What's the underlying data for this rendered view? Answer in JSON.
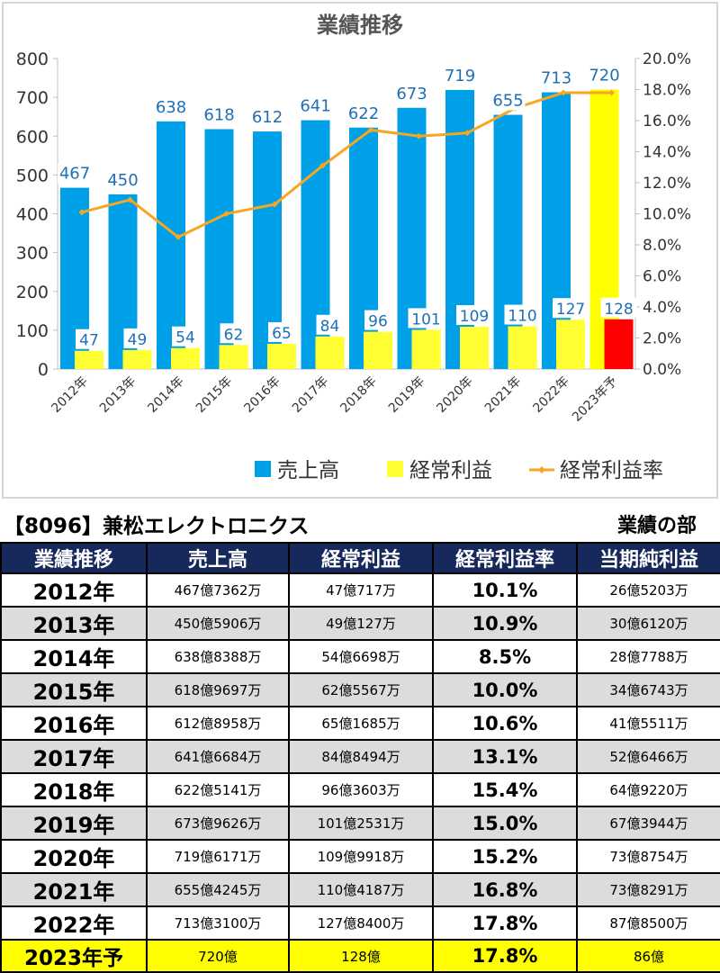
{
  "chart_data": {
    "type": "bar",
    "title": "業績推移",
    "categories": [
      "2012年",
      "2013年",
      "2014年",
      "2015年",
      "2016年",
      "2017年",
      "2018年",
      "2019年",
      "2020年",
      "2021年",
      "2022年",
      "2023年予"
    ],
    "series": [
      {
        "name": "売上高",
        "kind": "bar",
        "color": "#00a0e9",
        "values": [
          467,
          450,
          638,
          618,
          612,
          641,
          622,
          673,
          719,
          655,
          713,
          720
        ],
        "labels": [
          "467",
          "450",
          "638",
          "618",
          "612",
          "641",
          "622",
          "673",
          "719",
          "655",
          "713",
          "720"
        ]
      },
      {
        "name": "経常利益",
        "kind": "bar",
        "color": "#ffff33",
        "values": [
          47,
          49,
          54,
          62,
          65,
          84,
          96,
          101,
          109,
          110,
          127,
          128
        ],
        "labels": [
          "47",
          "49",
          "54",
          "62",
          "65",
          "84",
          "96",
          "101",
          "109",
          "110",
          "127",
          "128"
        ]
      },
      {
        "name": "経常利益率",
        "kind": "line",
        "axis": "right",
        "color": "#f5a623",
        "values": [
          10.1,
          10.9,
          8.5,
          10.0,
          10.6,
          13.1,
          15.4,
          15.0,
          15.2,
          16.8,
          17.8,
          17.8
        ]
      }
    ],
    "forecast_colors": {
      "売上高": "#ffff00",
      "経常利益": "#ff0000"
    },
    "ylim": [
      0,
      800
    ],
    "y_ticks": [
      "0",
      "100",
      "200",
      "300",
      "400",
      "500",
      "600",
      "700",
      "800"
    ],
    "y2lim": [
      0,
      20
    ],
    "y2_ticks": [
      "0.0%",
      "2.0%",
      "4.0%",
      "6.0%",
      "8.0%",
      "10.0%",
      "12.0%",
      "14.0%",
      "16.0%",
      "18.0%",
      "20.0%"
    ],
    "grid": false,
    "legend": "bottom-right"
  },
  "company_title": "【8096】兼松エレクトロニクス",
  "section_title": "業績の部",
  "table": {
    "headers": [
      "業績推移",
      "売上高",
      "経常利益",
      "経常利益率",
      "当期純利益"
    ],
    "rows": [
      {
        "year": "2012年",
        "sales": "467億7362万",
        "ordinary": "47億717万",
        "ratio": "10.1%",
        "net": "26億5203万"
      },
      {
        "year": "2013年",
        "sales": "450億5906万",
        "ordinary": "49億127万",
        "ratio": "10.9%",
        "net": "30億6120万"
      },
      {
        "year": "2014年",
        "sales": "638億8388万",
        "ordinary": "54億6698万",
        "ratio": "8.5%",
        "net": "28億7788万"
      },
      {
        "year": "2015年",
        "sales": "618億9697万",
        "ordinary": "62億5567万",
        "ratio": "10.0%",
        "net": "34億6743万"
      },
      {
        "year": "2016年",
        "sales": "612億8958万",
        "ordinary": "65億1685万",
        "ratio": "10.6%",
        "net": "41億5511万"
      },
      {
        "year": "2017年",
        "sales": "641億6684万",
        "ordinary": "84億8494万",
        "ratio": "13.1%",
        "net": "52億6466万"
      },
      {
        "year": "2018年",
        "sales": "622億5141万",
        "ordinary": "96億3603万",
        "ratio": "15.4%",
        "net": "64億9220万"
      },
      {
        "year": "2019年",
        "sales": "673億9626万",
        "ordinary": "101億2531万",
        "ratio": "15.0%",
        "net": "67億3944万"
      },
      {
        "year": "2020年",
        "sales": "719億6171万",
        "ordinary": "109億9918万",
        "ratio": "15.2%",
        "net": "73億8754万"
      },
      {
        "year": "2021年",
        "sales": "655億4245万",
        "ordinary": "110億4187万",
        "ratio": "16.8%",
        "net": "73億8291万"
      },
      {
        "year": "2022年",
        "sales": "713億3100万",
        "ordinary": "127億8400万",
        "ratio": "17.8%",
        "net": "87億8500万"
      },
      {
        "year": "2023年予",
        "sales": "720億",
        "ordinary": "128億",
        "ratio": "17.8%",
        "net": "86億"
      }
    ]
  }
}
